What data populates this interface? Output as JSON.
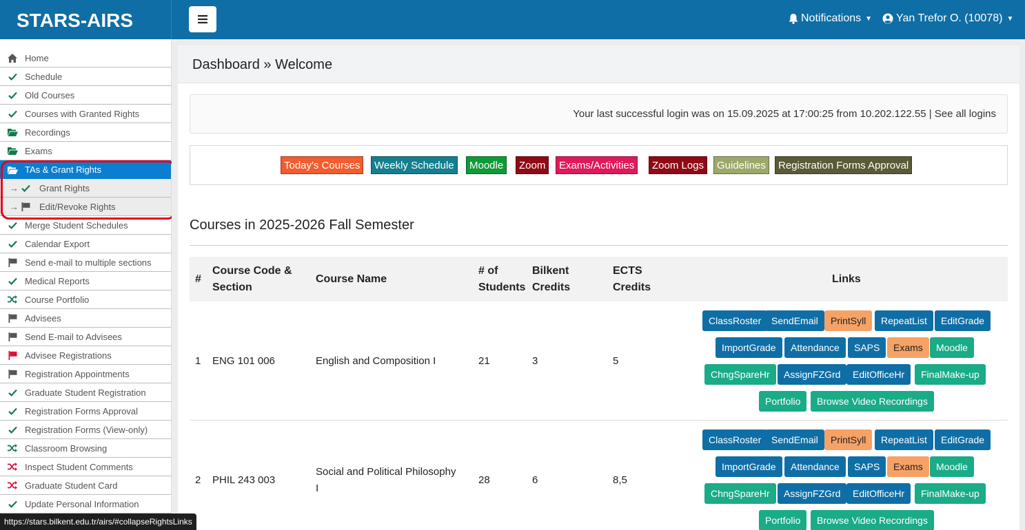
{
  "brand": {
    "title": "STARS-AIRS"
  },
  "sidebar": {
    "items": [
      {
        "label": "Home",
        "icon": "home-icon"
      },
      {
        "label": "Schedule",
        "icon": "check-icon"
      },
      {
        "label": "Old Courses",
        "icon": "check-icon"
      },
      {
        "label": "Courses with Granted Rights",
        "icon": "check-icon"
      },
      {
        "label": "Recordings",
        "icon": "folder-open-icon"
      },
      {
        "label": "Exams",
        "icon": "folder-open-icon"
      },
      {
        "label": "TAs & Grant Rights",
        "icon": "folder-open-icon",
        "active": true
      },
      {
        "label": "Grant Rights",
        "icon": "check-icon",
        "sub": true
      },
      {
        "label": "Edit/Revoke Rights",
        "icon": "flag-icon",
        "sub": true
      },
      {
        "label": "Merge Student Schedules",
        "icon": "check-icon"
      },
      {
        "label": "Calendar Export",
        "icon": "check-icon"
      },
      {
        "label": "Send e-mail to multiple sections",
        "icon": "flag-icon"
      },
      {
        "label": "Medical Reports",
        "icon": "check-icon"
      },
      {
        "label": "Course Portfolio",
        "icon": "shuffle-icon"
      },
      {
        "label": "Advisees",
        "icon": "flag-icon"
      },
      {
        "label": "Send E-mail to Advisees",
        "icon": "flag-icon"
      },
      {
        "label": "Advisee Registrations",
        "icon": "flag-red-icon"
      },
      {
        "label": "Registration Appointments",
        "icon": "flag-icon"
      },
      {
        "label": "Graduate Student Registration",
        "icon": "check-icon"
      },
      {
        "label": "Registration Forms Approval",
        "icon": "check-icon"
      },
      {
        "label": "Registration Forms (View-only)",
        "icon": "check-icon"
      },
      {
        "label": "Classroom Browsing",
        "icon": "shuffle-icon"
      },
      {
        "label": "Inspect Student Comments",
        "icon": "shuffle-red-icon"
      },
      {
        "label": "Graduate Student Card",
        "icon": "shuffle-red-icon"
      },
      {
        "label": "Update Personal Information",
        "icon": "check-icon"
      }
    ]
  },
  "topbar": {
    "menu_icon": "hamburger-icon",
    "notifications_label": "Notifications",
    "user_label": "Yan Trefor O. (10078)"
  },
  "page": {
    "breadcrumb": "Dashboard » Welcome",
    "login_info": "Your last successful login was on 15.09.2025 at 17:00:25 from 10.202.122.55 | See all logins",
    "quick_links": [
      {
        "label": "Today's Courses",
        "color": "#f25c2e"
      },
      {
        "label": "Weekly Schedule",
        "color": "#157f8f"
      },
      {
        "label": "Moodle",
        "color": "#0f9a38"
      },
      {
        "label": "Zoom",
        "color": "#8f0a16"
      },
      {
        "label": "Exams/Activities",
        "color": "#e0195a"
      },
      {
        "label": "Zoom Logs",
        "color": "#8f0a16"
      },
      {
        "label": "Guidelines",
        "color": "#9ca86a"
      },
      {
        "label": "Registration Forms Approval",
        "color": "#5a5a38"
      }
    ],
    "semester_title": "Courses in 2025-2026 Fall Semester"
  },
  "table": {
    "headers": {
      "num": "#",
      "code_1": "Course Code &",
      "code_2": "Section",
      "name": "Course Name",
      "students_1": "# of",
      "students_2": "Students",
      "bilkent_1": "Bilkent",
      "bilkent_2": "Credits",
      "ects_1": "ECTS",
      "ects_2": "Credits",
      "links": "Links"
    },
    "rows": [
      {
        "num": "1",
        "code": "ENG 101 006",
        "name_1": "English and Composition I",
        "name_2": "",
        "students": "21",
        "bilkent": "3",
        "ects": "5"
      },
      {
        "num": "2",
        "code": "PHIL 243 003",
        "name_1": "Social and Political Philosophy",
        "name_2": "I",
        "students": "28",
        "bilkent": "6",
        "ects": "8,5"
      }
    ],
    "link_buttons": {
      "classroster": "ClassRoster",
      "sendemail": "SendEmail",
      "printsyll": "PrintSyll",
      "repeatlist": "RepeatList",
      "editgrade": "EditGrade",
      "importgrade": "ImportGrade",
      "attendance": "Attendance",
      "saps": "SAPS",
      "exams": "Exams",
      "moodle": "Moodle",
      "chngsparehr": "ChngSpareHr",
      "assignfzgrd": "AssignFZGrd",
      "editofficehr": "EditOfficeHr",
      "finalmakeup": "FinalMake-up",
      "portfolio": "Portfolio",
      "browsevideo": "Browse Video Recordings"
    }
  },
  "statusbar": {
    "url": "https://stars.bilkent.edu.tr/airs/#collapseRightsLinks"
  }
}
